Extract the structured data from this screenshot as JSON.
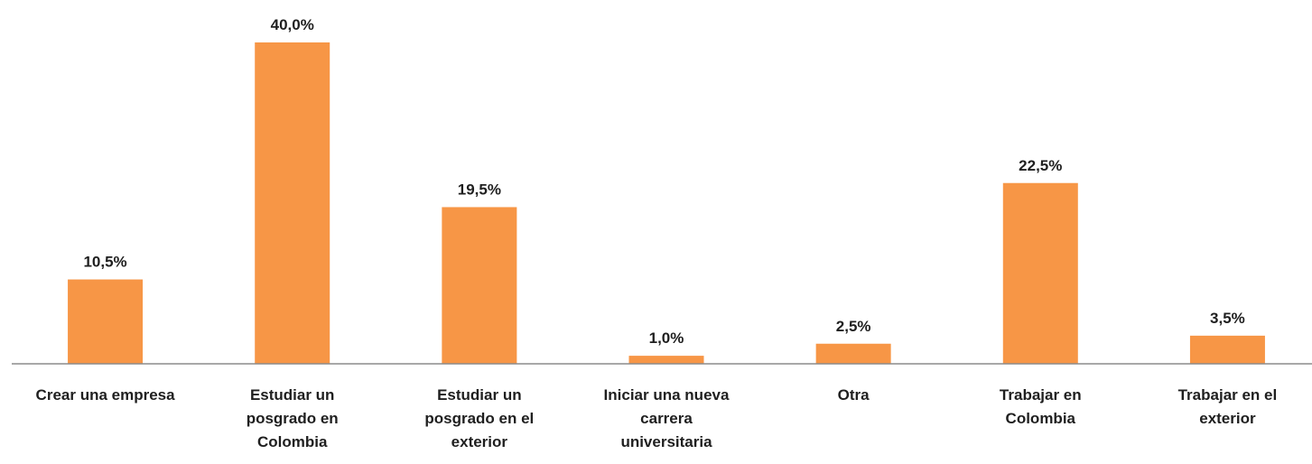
{
  "chart_data": {
    "type": "bar",
    "categories": [
      "Crear una empresa",
      "Estudiar un posgrado en Colombia",
      "Estudiar un posgrado en el exterior",
      "Iniciar una nueva carrera universitaria",
      "Otra",
      "Trabajar en Colombia",
      "Trabajar en el exterior"
    ],
    "values": [
      10.5,
      40.0,
      19.5,
      1.0,
      2.5,
      22.5,
      3.5
    ],
    "value_labels": [
      "10,5%",
      "40,0%",
      "19,5%",
      "1,0%",
      "2,5%",
      "22,5%",
      "3,5%"
    ],
    "color": "#f79646"
  }
}
